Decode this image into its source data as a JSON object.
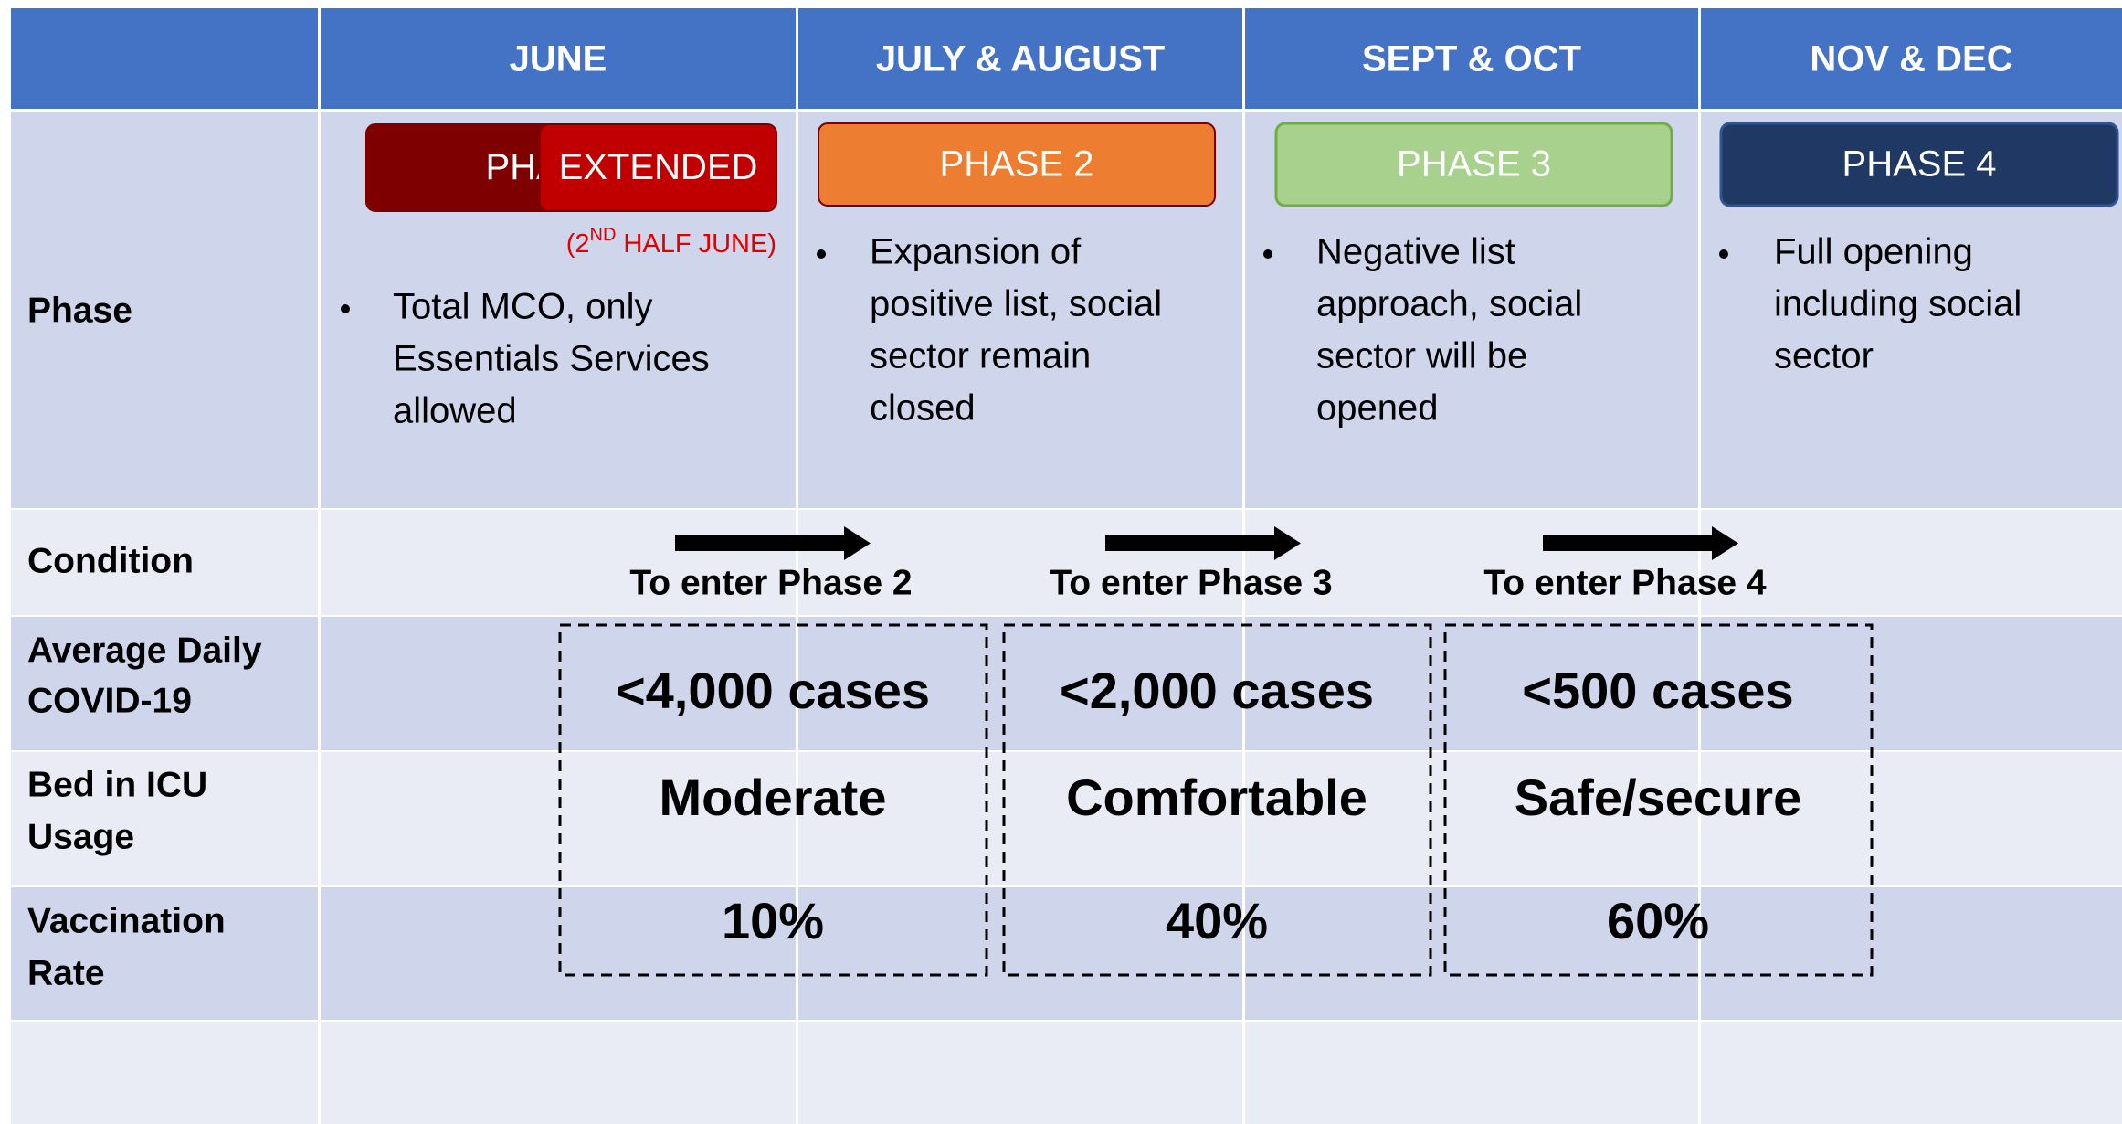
{
  "header": {
    "columns": [
      "JUNE",
      "JULY & AUGUST",
      "SEPT & OCT",
      "NOV & DEC"
    ]
  },
  "rows": {
    "labels": [
      [
        "Phase"
      ],
      [
        "Condition"
      ],
      [
        "Average Daily",
        "COVID-19"
      ],
      [
        "Bed in ICU",
        "Usage"
      ],
      [
        "Vaccination",
        "Rate"
      ]
    ]
  },
  "phases": [
    {
      "badges": [
        "PHASE 1",
        "EXTENDED"
      ],
      "note": {
        "prefix": "(2",
        "sup": "ND",
        "suffix": "HALF JUNE)"
      },
      "description": [
        "Total MCO, only",
        "Essentials Services",
        "allowed"
      ]
    },
    {
      "badges": [
        "PHASE 2"
      ],
      "description": [
        "Expansion of",
        "positive list, social",
        "sector remain",
        "closed"
      ]
    },
    {
      "badges": [
        "PHASE 3"
      ],
      "description": [
        "Negative list",
        "approach, social",
        "sector will be",
        "opened"
      ]
    },
    {
      "badges": [
        "PHASE 4"
      ],
      "description": [
        "Full opening",
        "including social",
        "sector"
      ]
    }
  ],
  "conditions": [
    {
      "label": "To enter Phase 2",
      "cases": "<4,000 cases",
      "icu": "Moderate",
      "vaccination": "10%"
    },
    {
      "label": "To enter Phase 3",
      "cases": "<2,000 cases",
      "icu": "Comfortable",
      "vaccination": "40%"
    },
    {
      "label": "To enter Phase 4",
      "cases": "<500 cases",
      "icu": "Safe/secure",
      "vaccination": "60%"
    }
  ]
}
